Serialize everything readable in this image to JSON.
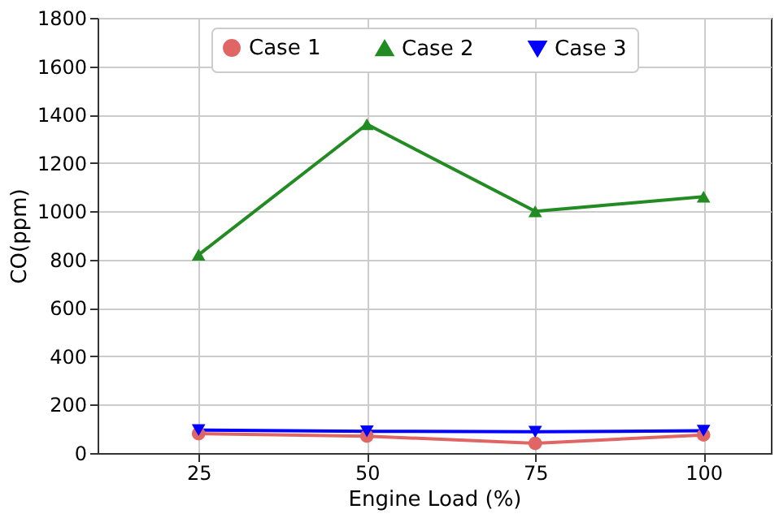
{
  "chart_data": {
    "type": "line",
    "x": [
      25,
      50,
      75,
      100
    ],
    "series": [
      {
        "name": "Case 1",
        "color": "#e06666",
        "marker": "circle",
        "values": [
          80,
          70,
          40,
          75
        ]
      },
      {
        "name": "Case 2",
        "color": "#228b22",
        "marker": "triangle",
        "values": [
          820,
          1360,
          1000,
          1060
        ]
      },
      {
        "name": "Case 3",
        "color": "#0000ff",
        "marker": "triangle-down",
        "values": [
          95,
          90,
          88,
          92
        ]
      }
    ],
    "xlabel": "Engine Load (%)",
    "ylabel": "CO(ppm)",
    "xlim": [
      10,
      110
    ],
    "xticks": [
      25,
      50,
      75,
      100
    ],
    "ylim": [
      0,
      1800
    ],
    "yticks": [
      0,
      200,
      400,
      600,
      800,
      1000,
      1200,
      1400,
      1600,
      1800
    ],
    "grid": true,
    "legend": "top",
    "line_style": "solid"
  }
}
